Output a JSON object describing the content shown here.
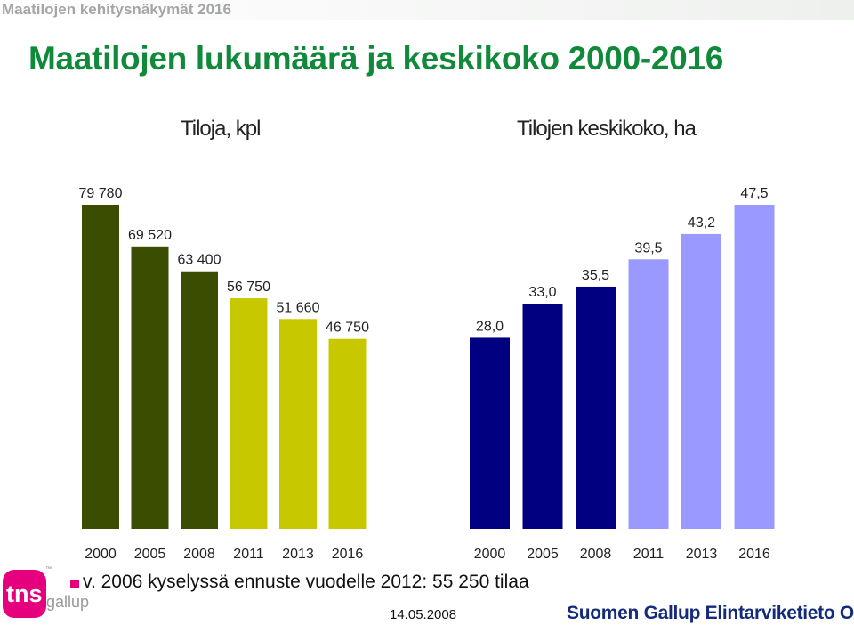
{
  "header": {
    "text": "Maatilojen kehitysnäkymät 2016"
  },
  "title": "Maatilojen lukumäärä ja keskikoko 2000-2016",
  "chart_data": [
    {
      "type": "bar",
      "subtitle": "Tiloja, kpl",
      "categories": [
        "2000",
        "2005",
        "2008",
        "2011",
        "2013",
        "2016"
      ],
      "values": [
        79780,
        69520,
        63400,
        56750,
        51660,
        46750
      ],
      "value_labels": [
        "79 780",
        "69 520",
        "63 400",
        "56 750",
        "51 660",
        "46 750"
      ],
      "colors": [
        "#3a4d00",
        "#3a4d00",
        "#3a4d00",
        "#c8c800",
        "#c8c800",
        "#c8c800"
      ],
      "ylim": [
        0,
        79780
      ],
      "grid": false
    },
    {
      "type": "bar",
      "subtitle": "Tilojen keskikoko, ha",
      "categories": [
        "2000",
        "2005",
        "2008",
        "2011",
        "2013",
        "2016"
      ],
      "values": [
        28.0,
        33.0,
        35.5,
        39.5,
        43.2,
        47.5
      ],
      "value_labels": [
        "28,0",
        "33,0",
        "35,5",
        "39,5",
        "43,2",
        "47,5"
      ],
      "colors": [
        "#000080",
        "#000080",
        "#000080",
        "#9999ff",
        "#9999ff",
        "#9999ff"
      ],
      "ylim": [
        0,
        47.5
      ],
      "grid": false
    }
  ],
  "note": "v. 2006 kyselyssä ennuste vuodelle 2012: 55 250 tilaa",
  "date": "14.05.2008",
  "footer": {
    "company": "Suomen Gallup Elintarviketieto Oy"
  },
  "logo": {
    "text_main": "tns",
    "text_sub": "gallup",
    "tm": "™"
  },
  "colors": {
    "title": "#108a3a",
    "footer": "#142a7a",
    "accent": "#e6007e"
  }
}
